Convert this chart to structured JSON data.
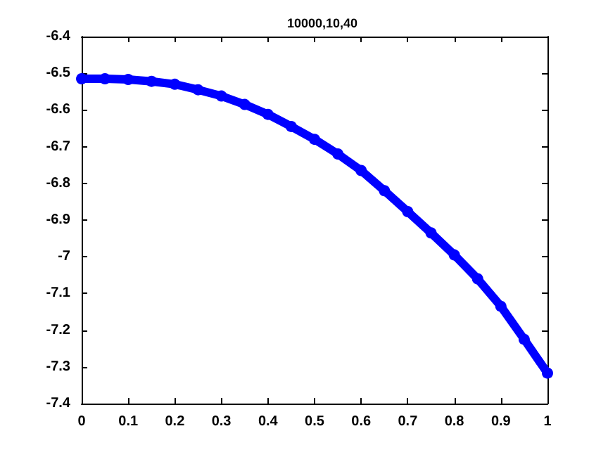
{
  "chart_data": {
    "type": "line",
    "title": "10000,10,40",
    "x": [
      0,
      0.05,
      0.1,
      0.15,
      0.2,
      0.25,
      0.3,
      0.35,
      0.4,
      0.45,
      0.5,
      0.55,
      0.6,
      0.65,
      0.7,
      0.75,
      0.8,
      0.85,
      0.9,
      0.95,
      1
    ],
    "series": [
      {
        "color": "#0000ff",
        "values": [
          -6.515,
          -6.515,
          -6.517,
          -6.522,
          -6.53,
          -6.545,
          -6.562,
          -6.585,
          -6.612,
          -6.645,
          -6.68,
          -6.72,
          -6.765,
          -6.82,
          -6.877,
          -6.935,
          -6.995,
          -7.06,
          -7.135,
          -7.225,
          -7.317
        ]
      }
    ],
    "xlim": [
      0,
      1
    ],
    "xticks": [
      0,
      0.1,
      0.2,
      0.3,
      0.4,
      0.5,
      0.6,
      0.7,
      0.8,
      0.9,
      1
    ],
    "ylim": [
      -7.4,
      -6.4
    ],
    "yticks": [
      -7.4,
      -7.3,
      -7.2,
      -7.1,
      -7,
      -6.9,
      -6.8,
      -6.7,
      -6.6,
      -6.5,
      -6.4
    ],
    "grid": false,
    "marker": "circle",
    "line_style": "solid"
  }
}
